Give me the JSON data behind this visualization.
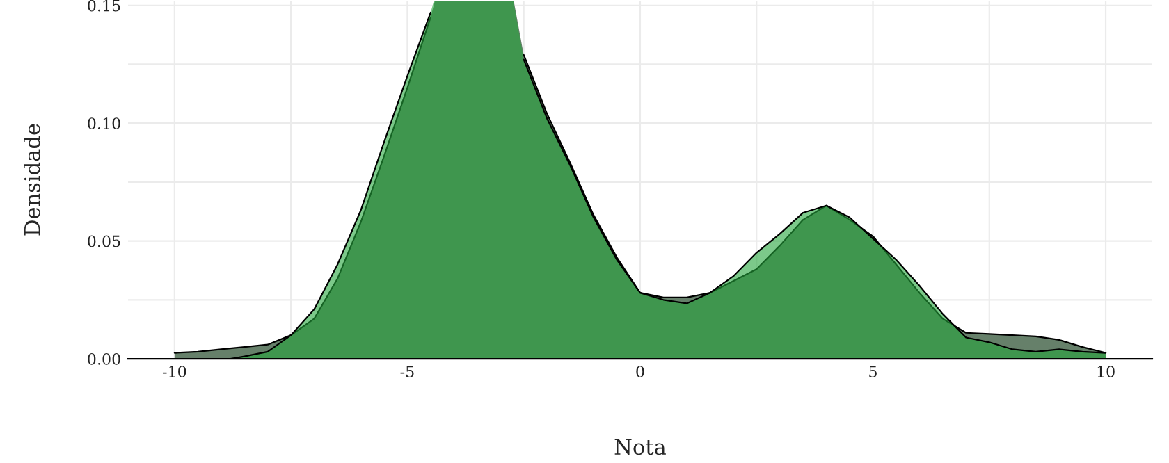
{
  "chart_data": {
    "type": "area",
    "xlabel": "Nota",
    "ylabel": "Densidade",
    "xlim": [
      -11,
      11
    ],
    "ylim": [
      0,
      0.152
    ],
    "xticks": [
      -10,
      {
        "value": -7.5,
        "label": null
      },
      -5,
      {
        "value": -2.5,
        "label": null
      },
      0,
      {
        "value": 2.5,
        "label": null
      },
      5,
      {
        "value": 7.5,
        "label": null
      },
      10
    ],
    "yticks": [
      {
        "value": 0,
        "label": "0.00"
      },
      {
        "value": 0.025,
        "label": null
      },
      {
        "value": 0.05,
        "label": "0.05"
      },
      {
        "value": 0.075,
        "label": null
      },
      {
        "value": 0.1,
        "label": "0.10"
      },
      {
        "value": 0.125,
        "label": null
      },
      {
        "value": 0.15,
        "label": "0.15"
      }
    ],
    "grid": true,
    "legend": false,
    "series": [
      {
        "color": "#66806a",
        "x": [
          -10,
          -9.5,
          -9,
          -8.5,
          -8,
          -7.5,
          -7,
          -6.5,
          -6,
          -5.5,
          -5,
          -4.5,
          -4,
          -3.5,
          -3,
          -2.5,
          -2,
          -1.5,
          -1,
          -0.5,
          0,
          0.5,
          1,
          1.5,
          2,
          2.5,
          3,
          3.5,
          4,
          4.5,
          5,
          5.5,
          6,
          6.5,
          7,
          7.5,
          8,
          8.5,
          9,
          9.5,
          10
        ],
        "values": [
          0.0025,
          0.003,
          0.004,
          0.005,
          0.006,
          0.01,
          0.017,
          0.034,
          0.058,
          0.086,
          0.115,
          0.145,
          null,
          null,
          null,
          0.129,
          0.104,
          0.083,
          0.061,
          0.043,
          0.028,
          0.026,
          0.026,
          0.028,
          0.033,
          0.038,
          0.048,
          0.059,
          0.065,
          0.059,
          0.052,
          0.04,
          0.028,
          0.017,
          0.011,
          0.0105,
          0.01,
          0.0095,
          0.008,
          0.005,
          0.0025
        ]
      },
      {
        "color": "#25a53c",
        "x": [
          -8.8,
          -8.5,
          -8,
          -7.5,
          -7,
          -6.5,
          -6,
          -5.5,
          -5,
          -4.5,
          -4,
          -3.5,
          -3,
          -2.5,
          -2,
          -1.5,
          -1,
          -0.5,
          0,
          0.5,
          1,
          1.5,
          2,
          2.5,
          3,
          3.5,
          4,
          4.5,
          5,
          5.5,
          6,
          6.5,
          7,
          7.5,
          8,
          8.5,
          9,
          9.5,
          10
        ],
        "values": [
          0,
          0.001,
          0.003,
          0.01,
          0.021,
          0.04,
          0.063,
          0.092,
          0.12,
          0.147,
          null,
          null,
          null,
          0.127,
          0.102,
          0.082,
          0.06,
          0.042,
          0.028,
          0.025,
          0.0235,
          0.028,
          0.035,
          0.045,
          0.053,
          0.062,
          0.065,
          0.06,
          0.051,
          0.042,
          0.031,
          0.019,
          0.009,
          0.007,
          0.004,
          0.003,
          0.004,
          0.003,
          0.0025
        ]
      }
    ]
  }
}
